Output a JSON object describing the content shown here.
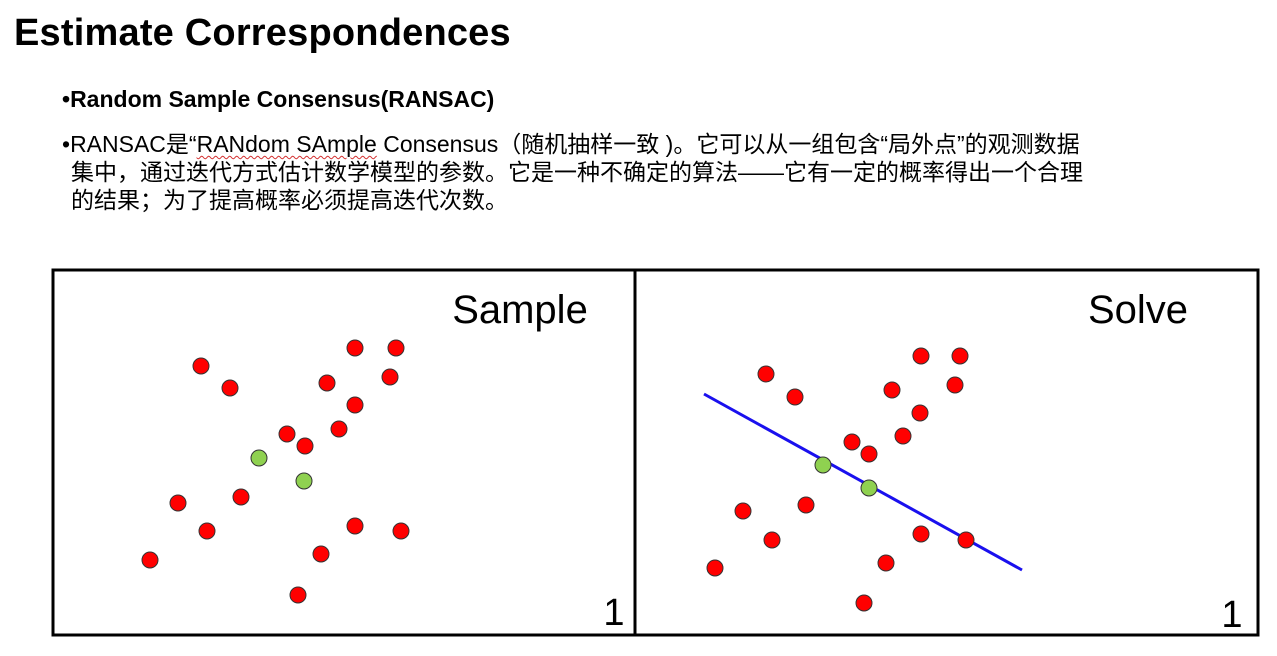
{
  "slide": {
    "title": "Estimate Correspondences",
    "bullet_marker": "•",
    "bullet1": "Random Sample Consensus(RANSAC)",
    "bullet2_prefix": "RANSAC是“",
    "bullet2_underlined": "RANdom SAmple",
    "bullet2_line1_rest": " Consensus（随机抽样一致 )。它可以从一组包含“局外点”的观测数据",
    "bullet2_line2": "集中，通过迭代方式估计数学模型的参数。它是一种不确定的算法——它有一定的概率得出一个合理",
    "bullet2_line3": "的结果；为了提高概率必须提高迭代次数。"
  },
  "panels": [
    {
      "title": "Sample",
      "number": "1",
      "show_line": false,
      "red_points": [
        [
          201,
          366
        ],
        [
          230,
          388
        ],
        [
          355,
          348
        ],
        [
          396,
          348
        ],
        [
          327,
          383
        ],
        [
          390,
          377
        ],
        [
          355,
          405
        ],
        [
          339,
          429
        ],
        [
          287,
          434
        ],
        [
          305,
          446
        ],
        [
          178,
          503
        ],
        [
          241,
          497
        ],
        [
          207,
          531
        ],
        [
          355,
          526
        ],
        [
          401,
          531
        ],
        [
          321,
          554
        ],
        [
          150,
          560
        ],
        [
          298,
          595
        ]
      ],
      "green_points": [
        [
          259,
          458
        ],
        [
          304,
          481
        ]
      ]
    },
    {
      "title": "Solve",
      "number": "1",
      "show_line": true,
      "line": [
        [
          704,
          394
        ],
        [
          1022,
          570
        ]
      ],
      "red_points": [
        [
          766,
          374
        ],
        [
          795,
          397
        ],
        [
          921,
          356
        ],
        [
          960,
          356
        ],
        [
          892,
          390
        ],
        [
          955,
          385
        ],
        [
          920,
          413
        ],
        [
          903,
          436
        ],
        [
          852,
          442
        ],
        [
          869,
          454
        ],
        [
          743,
          511
        ],
        [
          806,
          505
        ],
        [
          772,
          540
        ],
        [
          921,
          534
        ],
        [
          966,
          540
        ],
        [
          886,
          563
        ],
        [
          715,
          568
        ],
        [
          864,
          603
        ]
      ],
      "green_points": [
        [
          823,
          465
        ],
        [
          869,
          488
        ]
      ]
    }
  ],
  "colors": {
    "red_point": "#ff0000",
    "green_point": "#8fd150",
    "line": "#1a10ee",
    "border": "#000000"
  }
}
